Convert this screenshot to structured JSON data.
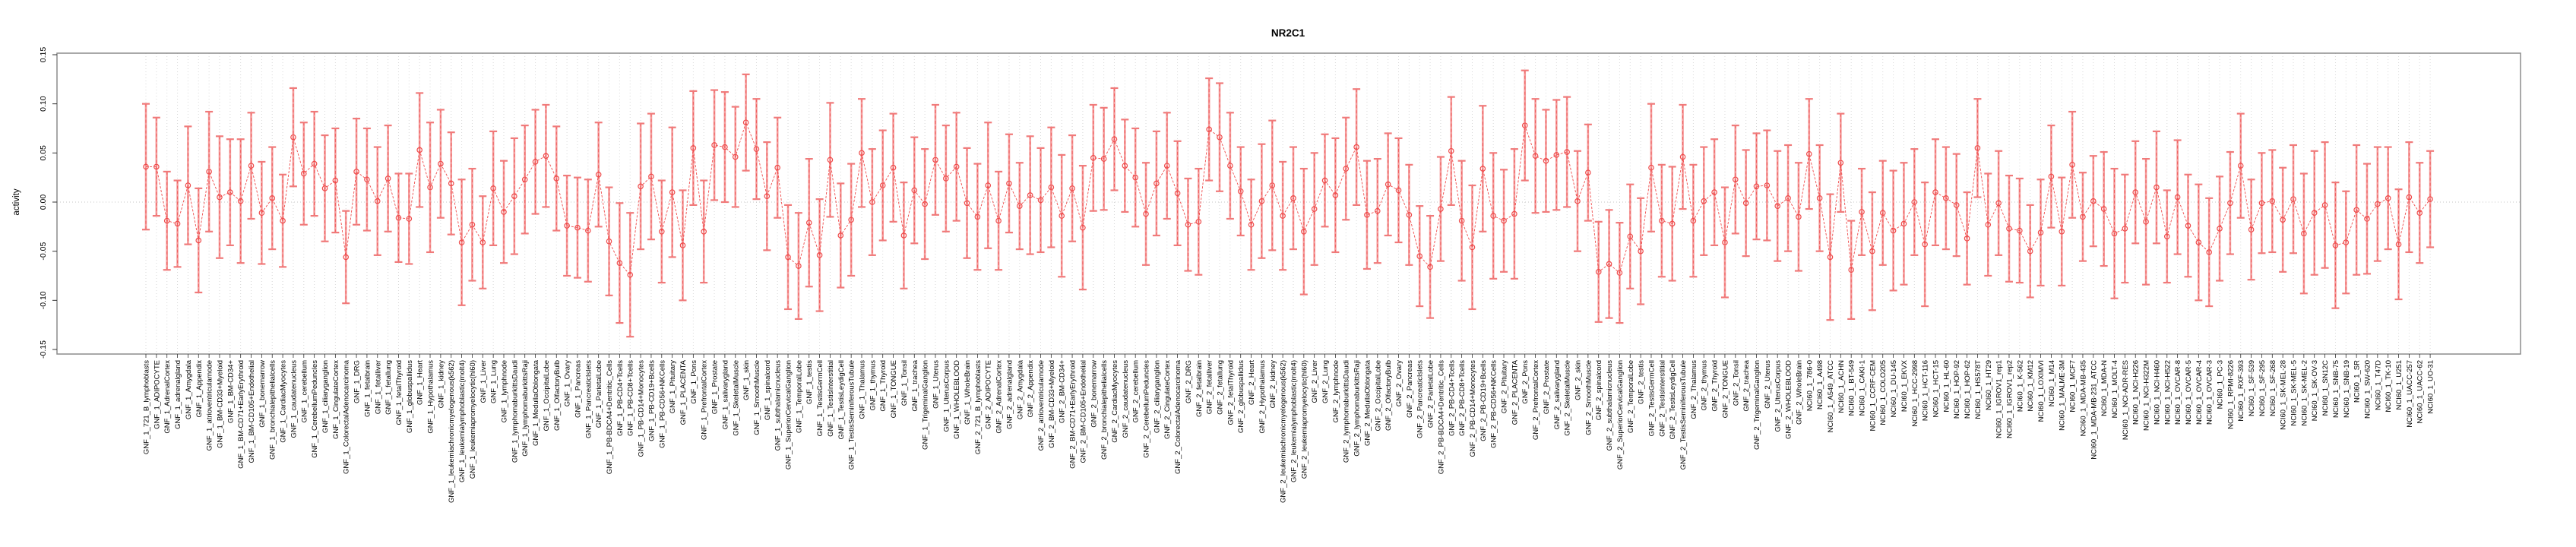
{
  "chart_data": {
    "type": "errorbar",
    "title": "NR2C1",
    "ylabel": "activity",
    "xlabel": "",
    "ylim": [
      -0.15,
      0.15
    ],
    "yticks": [
      0.15,
      0.1,
      0.05,
      0.0,
      -0.05,
      -0.1,
      -0.15
    ],
    "ytick_labels": [
      "0.15",
      "0.10",
      "0.05",
      "0.00",
      "-0.05",
      "-0.10",
      "-0.15"
    ],
    "n_points": 218,
    "grid": "dotted vertical gridline per category, dotted horizontal line at y=0",
    "legend": "none",
    "point_style": "open-circle",
    "line_style": "dashed-connector",
    "colors": {
      "point": "#ef4b4b",
      "line": "#ef4b4b",
      "error_stem": "#f49a9a",
      "error_cap": "#f07a7a",
      "grid": "#d8d8d8",
      "zero_line": "#c4c4c4",
      "box": "#8c8c8c",
      "text": "#000000"
    },
    "categories": [
      "GNF_1_721_B_lymphoblasts",
      "GNF_1_ADIPOCYTE",
      "GNF_1_AdrenalCortex",
      "GNF_1_adrenalgland",
      "GNF_1_Amygdala",
      "GNF_1_Appendix",
      "GNF_1_atrioventricularnode",
      "GNF_1_BM-CD33+Myeloid",
      "GNF_1_BM-CD34+",
      "GNF_1_BM-CD71+EarlyErythroid",
      "GNF_1_BM-CD105+Endothelial",
      "GNF_1_bonemarrow",
      "GNF_1_bronchialepithelialcells",
      "GNF_1_CardiacMyocytes",
      "GNF_1_caudatenucleus",
      "GNF_1_cerebellum",
      "GNF_1_CerebellumPeduncles",
      "GNF_1_ciliaryganglion",
      "GNF_1_CingulateCortex",
      "GNF_1_ColorectalAdenocarcinoma",
      "GNF_1_DRG",
      "GNF_1_fetalbrain",
      "GNF_1_fetalliver",
      "GNF_1_fetallung",
      "GNF_1_fetalThyroid",
      "GNF_1_globuspallidus",
      "GNF_1_Heart",
      "GNF_1_Hypothalamus",
      "GNF_1_kidney",
      "GNF_1_leukemiachronicmyelogenous(k562)",
      "GNF_1_leukemialymphoblastic(molt4)",
      "GNF_1_leukemiapromyelocytic(hl60)",
      "GNF_1_Liver",
      "GNF_1_Lung",
      "GNF_1_lymphnode",
      "GNF_1_lymphomaburkittsDaudi",
      "GNF_1_lymphomaburkittsRaji",
      "GNF_1_MedullaOblongata",
      "GNF_1_OccipitalLobe",
      "GNF_1_OlfactoryBulb",
      "GNF_1_Ovary",
      "GNF_1_Pancreas",
      "GNF_1_PancreaticIslets",
      "GNF_1_ParietalLobe",
      "GNF_1_PB-BDCA4+Dentritic_Cells",
      "GNF_1_PB-CD4+Tcells",
      "GNF_1_PB-CD8+Tcells",
      "GNF_1_PB-CD14+Monocytes",
      "GNF_1_PB-CD19+Bcells",
      "GNF_1_PB-CD56+NKCells",
      "GNF_1_Pituitary",
      "GNF_1_PLACENTA",
      "GNF_1_Pons",
      "GNF_1_PrefrontalCortex",
      "GNF_1_Prostate",
      "GNF_1_salivarygland",
      "GNF_1_SkeletalMuscle",
      "GNF_1_skin",
      "GNF_1_SmoothMuscle",
      "GNF_1_spinalcord",
      "GNF_1_subthalamicnucleus",
      "GNF_1_SuperiorCervicalGanglion",
      "GNF_1_TemporalLobe",
      "GNF_1_testis",
      "GNF_1_TestisGermCell",
      "GNF_1_TestisInterstitial",
      "GNF_1_TestisLeydigCell",
      "GNF_1_TestisSeminiferousTubule",
      "GNF_1_Thalamus",
      "GNF_1_thymus",
      "GNF_1_Thyroid",
      "GNF_1_TONGUE",
      "GNF_1_Tonsil",
      "GNF_1_trachea",
      "GNF_1_TrigeminalGanglion",
      "GNF_1_Uterus",
      "GNF_1_UterusCorpus",
      "GNF_1_WHOLEBLOOD",
      "GNF_1_WholeBrain",
      "GNF_2_721_B_lymphoblasts",
      "GNF_2_ADIPOCYTE",
      "GNF_2_AdrenalCortex",
      "GNF_2_adrenalgland",
      "GNF_2_Amygdala",
      "GNF_2_Appendix",
      "GNF_2_atrioventricularnode",
      "GNF_2_BM-CD33+Myeloid",
      "GNF_2_BM-CD34+",
      "GNF_2_BM-CD71+EarlyErythroid",
      "GNF_2_BM-CD105+Endothelial",
      "GNF_2_bonemarrow",
      "GNF_2_bronchialepithelialcells",
      "GNF_2_CardiacMyocytes",
      "GNF_2_caudatenucleus",
      "GNF_2_cerebellum",
      "GNF_2_CerebellumPeduncles",
      "GNF_2_ciliaryganglion",
      "GNF_2_CingulateCortex",
      "GNF_2_ColorectalAdenocarcinoma",
      "GNF_2_DRG",
      "GNF_2_fetalbrain",
      "GNF_2_fetalliver",
      "GNF_2_fetallung",
      "GNF_2_fetalThyroid",
      "GNF_2_globuspallidus",
      "GNF_2_Heart",
      "GNF_2_Hypothalamus",
      "GNF_2_kidney",
      "GNF_2_leukemiachronicmyelogenous(k562)",
      "GNF_2_leukemialymphoblastic(molt4)",
      "GNF_2_leukemiapromyelocytic(hl60)",
      "GNF_2_Liver",
      "GNF_2_Lung",
      "GNF_2_lymphnode",
      "GNF_2_lymphomaburkittsDaudi",
      "GNF_2_lymphomaburkittsRaji",
      "GNF_2_MedullaOblongata",
      "GNF_2_OccipitalLobe",
      "GNF_2_OlfactoryBulb",
      "GNF_2_Ovary",
      "GNF_2_Pancreas",
      "GNF_2_PancreaticIslets",
      "GNF_2_ParietalLobe",
      "GNF_2_PB-BDCA4+Dentritic_Cells",
      "GNF_2_PB-CD4+Tcells",
      "GNF_2_PB-CD8+Tcells",
      "GNF_2_PB-CD14+Monocytes",
      "GNF_2_PB-CD19+Bcells",
      "GNF_2_PB-CD56+NKCells",
      "GNF_2_Pituitary",
      "GNF_2_PLACENTA",
      "GNF_2_Pons",
      "GNF_2_PrefrontalCortex",
      "GNF_2_Prostate",
      "GNF_2_salivarygland",
      "GNF_2_SkeletalMuscle",
      "GNF_2_skin",
      "GNF_2_SmoothMuscle",
      "GNF_2_spinalcord",
      "GNF_2_subthalamicnucleus",
      "GNF_2_SuperiorCervicalGanglion",
      "GNF_2_TemporalLobe",
      "GNF_2_testis",
      "GNF_2_TestisGermCell",
      "GNF_2_TestisInterstitial",
      "GNF_2_TestisLeydigCell",
      "GNF_2_TestisSeminiferousTubule",
      "GNF_2_Thalamus",
      "GNF_2_thymus",
      "GNF_2_Thyroid",
      "GNF_2_TONGUE",
      "GNF_2_Tonsil",
      "GNF_2_trachea",
      "GNF_2_TrigeminalGanglion",
      "GNF_2_Uterus",
      "GNF_2_UterusCorpus",
      "GNF_2_WHOLEBLOOD",
      "GNF_2_WholeBrain",
      "NCI60_1_786-0",
      "NCI60_1_A498",
      "NCI60_1_A549_ATCC",
      "NCI60_1_ACHN",
      "NCI60_1_BT-549",
      "NCI60_1_CAKI-1",
      "NCI60_1_CCRF-CEM",
      "NCI60_1_COLO205",
      "NCI60_1_DU-145",
      "NCI60_1_EKVX",
      "NCI60_1_HCC-2998",
      "NCI60_1_HCT-116",
      "NCI60_1_HCT-15",
      "NCI60_1_HL-60",
      "NCI60_1_HOP-92",
      "NCI60_1_HOP-62",
      "NCI60_1_HS578T",
      "NCI60_1_HT29",
      "NCI60_1_IGROV1_rep1",
      "NCI60_1_IGROV1_rep2",
      "NCI60_1_K-562",
      "NCI60_1_KM12",
      "NCI60_1_LOXIMVI",
      "NCI60_1_M14",
      "NCI60_1_MALME-3M",
      "NCI60_1_MCF7",
      "NCI60_1_MDA-MB-435",
      "NCI60_1_MDA-MB-231_ATCC",
      "NCI60_1_MDA-N",
      "NCI60_1_MOLT-4",
      "NCI60_1_NCI-ADR-RES",
      "NCI60_1_NCI-H226",
      "NCI60_1_NCI-H322M",
      "NCI60_1_NCI-H460",
      "NCI60_1_NCI-H522",
      "NCI60_1_OVCAR-8",
      "NCI60_1_OVCAR-5",
      "NCI60_1_OVCAR-4",
      "NCI60_1_OVCAR-3",
      "NCI60_1_PC-3",
      "NCI60_1_RPMI-8226",
      "NCI60_1_RXF-393",
      "NCI60_1_SF-539",
      "NCI60_1_SF-295",
      "NCI60_1_SF-268",
      "NCI60_1_SK-MEL-28",
      "NCI60_1_SK-MEL-5",
      "NCI60_1_SK-MEL-2",
      "NCI60_1_SK-OV-3",
      "NCI60_1_SN12C",
      "NCI60_1_SNB-75",
      "NCI60_1_SNB-19",
      "NCI60_1_SR",
      "NCI60_1_SW-620",
      "NCI60_1_T47D",
      "NCI60_1_TK-10",
      "NCI60_1_U251",
      "NCI60_1_UACC-257",
      "NCI60_1_UACC-62",
      "NCI60_1_UO-31"
    ],
    "series": [
      {
        "name": "activity",
        "values": [
          0.036,
          0.036,
          -0.019,
          -0.022,
          0.017,
          -0.039,
          0.031,
          0.005,
          0.01,
          0.001,
          0.037,
          -0.011,
          0.004,
          -0.019,
          0.066,
          0.029,
          0.039,
          0.014,
          0.022,
          -0.056,
          0.031,
          0.023,
          0.001,
          0.024,
          -0.016,
          -0.017,
          0.053,
          0.015,
          0.039,
          0.019,
          -0.041,
          -0.023,
          -0.041,
          0.014,
          -0.01,
          0.006,
          0.023,
          0.041,
          0.047,
          0.024,
          -0.024,
          -0.026,
          -0.029,
          0.028,
          -0.04,
          -0.062,
          -0.074,
          0.016,
          0.026,
          -0.03,
          0.01,
          -0.044,
          0.055,
          -0.03,
          0.058,
          0.056,
          0.046,
          0.081,
          0.054,
          0.006,
          0.035,
          -0.056,
          -0.065,
          -0.021,
          -0.054,
          0.043,
          -0.034,
          -0.018,
          0.05,
          0.0,
          0.017,
          0.035,
          -0.034,
          0.012,
          -0.002,
          0.043,
          0.024,
          0.036,
          -0.001,
          -0.015,
          0.017,
          -0.019,
          0.019,
          -0.004,
          0.007,
          0.002,
          0.015,
          -0.014,
          0.014,
          -0.026,
          0.045,
          0.044,
          0.064,
          0.037,
          0.025,
          -0.012,
          0.019,
          0.037,
          0.009,
          -0.023,
          -0.02,
          0.074,
          0.066,
          0.037,
          0.011,
          -0.023,
          0.001,
          0.017,
          -0.014,
          0.004,
          -0.03,
          -0.007,
          0.022,
          0.007,
          0.034,
          0.056,
          -0.013,
          -0.009,
          0.018,
          0.012,
          -0.013,
          -0.055,
          -0.066,
          -0.007,
          0.052,
          -0.019,
          -0.046,
          0.034,
          -0.014,
          -0.019,
          -0.012,
          0.078,
          0.047,
          0.042,
          0.048,
          0.051,
          0.001,
          0.03,
          -0.071,
          -0.063,
          -0.072,
          -0.035,
          -0.05,
          0.035,
          -0.019,
          -0.022,
          0.046,
          -0.019,
          0.001,
          0.01,
          -0.041,
          0.023,
          -0.001,
          0.016,
          0.017,
          -0.004,
          0.004,
          -0.015,
          0.049,
          0.004,
          -0.056,
          0.04,
          -0.069,
          -0.01,
          -0.05,
          -0.011,
          -0.029,
          -0.022,
          0.0,
          -0.043,
          0.01,
          0.004,
          -0.003,
          -0.037,
          0.055,
          -0.023,
          -0.001,
          -0.027,
          -0.029,
          -0.05,
          -0.031,
          0.026,
          -0.03,
          0.038,
          -0.015,
          0.001,
          -0.007,
          -0.032,
          -0.027,
          0.01,
          -0.02,
          0.015,
          -0.035,
          0.005,
          -0.024,
          -0.041,
          -0.051,
          -0.027,
          -0.001,
          0.037,
          -0.028,
          -0.001,
          0.001,
          -0.018,
          0.003,
          -0.032,
          -0.011,
          -0.003,
          -0.044,
          -0.041,
          -0.008,
          -0.017,
          -0.002,
          0.004,
          -0.043,
          0.005,
          -0.011,
          0.003
        ],
        "errors": [
          0.064,
          0.05,
          0.05,
          0.044,
          0.06,
          0.053,
          0.061,
          0.062,
          0.054,
          0.063,
          0.054,
          0.052,
          0.052,
          0.047,
          0.05,
          0.052,
          0.053,
          0.054,
          0.053,
          0.047,
          0.054,
          0.052,
          0.055,
          0.054,
          0.045,
          0.046,
          0.058,
          0.066,
          0.055,
          0.052,
          0.064,
          0.057,
          0.047,
          0.058,
          0.052,
          0.059,
          0.055,
          0.053,
          0.052,
          0.053,
          0.051,
          0.051,
          0.052,
          0.053,
          0.055,
          0.061,
          0.063,
          0.064,
          0.064,
          0.052,
          0.066,
          0.056,
          0.058,
          0.052,
          0.056,
          0.056,
          0.051,
          0.049,
          0.051,
          0.055,
          0.051,
          0.053,
          0.054,
          0.065,
          0.057,
          0.058,
          0.053,
          0.057,
          0.055,
          0.054,
          0.056,
          0.055,
          0.054,
          0.054,
          0.056,
          0.056,
          0.054,
          0.055,
          0.056,
          0.054,
          0.064,
          0.05,
          0.05,
          0.044,
          0.06,
          0.053,
          0.061,
          0.062,
          0.054,
          0.063,
          0.054,
          0.052,
          0.052,
          0.047,
          0.05,
          0.052,
          0.053,
          0.054,
          0.053,
          0.047,
          0.054,
          0.052,
          0.055,
          0.054,
          0.045,
          0.046,
          0.058,
          0.066,
          0.055,
          0.052,
          0.064,
          0.057,
          0.047,
          0.058,
          0.052,
          0.059,
          0.055,
          0.053,
          0.052,
          0.053,
          0.051,
          0.051,
          0.052,
          0.053,
          0.055,
          0.061,
          0.063,
          0.064,
          0.064,
          0.052,
          0.066,
          0.056,
          0.058,
          0.052,
          0.056,
          0.056,
          0.051,
          0.049,
          0.051,
          0.055,
          0.051,
          0.053,
          0.054,
          0.065,
          0.057,
          0.058,
          0.053,
          0.057,
          0.055,
          0.054,
          0.056,
          0.055,
          0.054,
          0.054,
          0.056,
          0.056,
          0.054,
          0.055,
          0.056,
          0.054,
          0.064,
          0.05,
          0.05,
          0.044,
          0.06,
          0.053,
          0.061,
          0.062,
          0.054,
          0.063,
          0.054,
          0.052,
          0.052,
          0.047,
          0.05,
          0.052,
          0.053,
          0.054,
          0.053,
          0.047,
          0.054,
          0.052,
          0.055,
          0.054,
          0.045,
          0.046,
          0.058,
          0.066,
          0.055,
          0.052,
          0.064,
          0.057,
          0.047,
          0.058,
          0.052,
          0.059,
          0.055,
          0.053,
          0.052,
          0.053,
          0.051,
          0.051,
          0.052,
          0.053,
          0.055,
          0.061,
          0.063,
          0.064,
          0.064,
          0.052,
          0.066,
          0.056,
          0.058,
          0.052,
          0.056,
          0.056,
          0.051,
          0.049
        ]
      }
    ]
  }
}
